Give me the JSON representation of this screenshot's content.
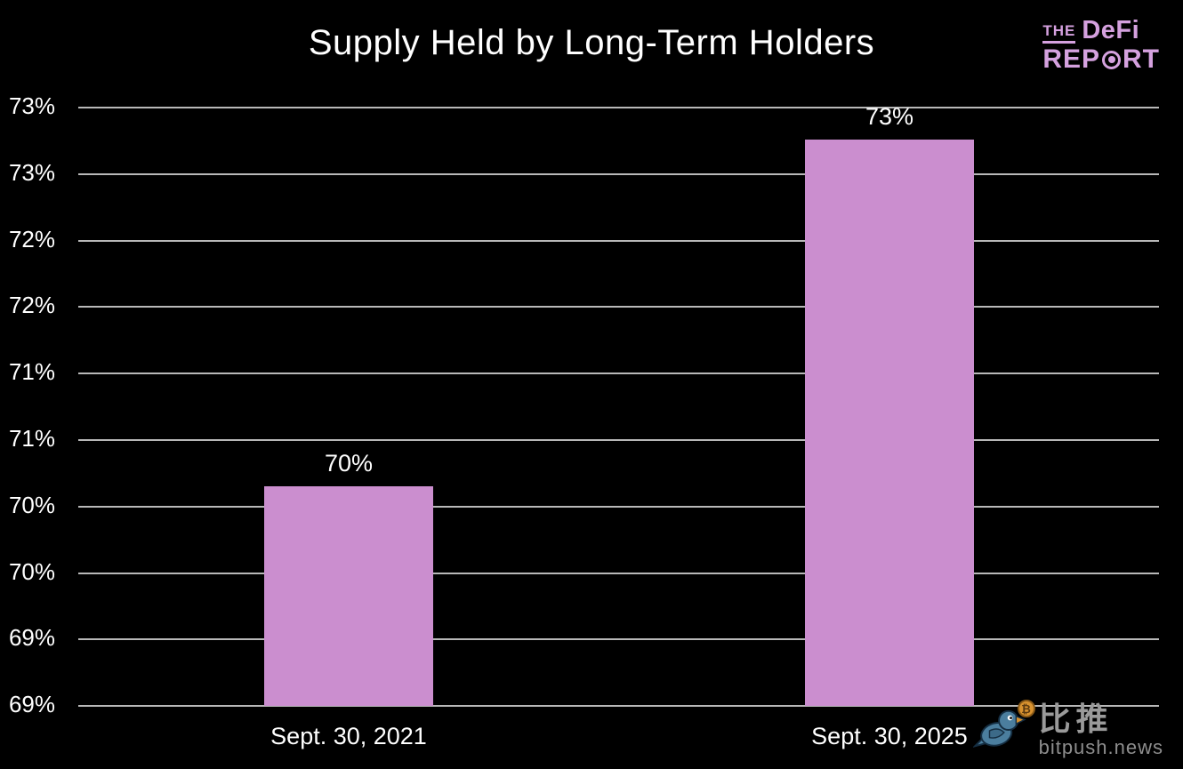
{
  "header": {
    "title": "Supply Held by Long-Term Holders"
  },
  "logo": {
    "the": "THE",
    "defi": "DeFi",
    "rep": "REP",
    "rt": "RT",
    "color": "#d5a1df"
  },
  "watermark": {
    "chinese": "比推",
    "site": "bitpush.news",
    "bird_color": "#4b7e9e",
    "coin_color": "#d8922f",
    "coin_symbol": "₿"
  },
  "chart_data": {
    "type": "bar",
    "title": "Supply Held by Long-Term Holders",
    "categories": [
      "Sept. 30, 2021",
      "Sept. 30, 2025"
    ],
    "values": [
      70.4,
      73.0
    ],
    "data_labels": [
      "70%",
      "73%"
    ],
    "xlabel": "",
    "ylabel": "",
    "ylim": [
      68.75,
      73.25
    ],
    "y_tick_step": 0.5,
    "y_tick_labels_top_to_bottom": [
      "73%",
      "73%",
      "72%",
      "72%",
      "71%",
      "71%",
      "70%",
      "70%",
      "69%",
      "69%"
    ],
    "grid": true,
    "legend": false,
    "bar_color": "#cb8ecf",
    "gridline_color": "#b8b8b8",
    "text_color": "#ffffff",
    "background": "#000000"
  }
}
